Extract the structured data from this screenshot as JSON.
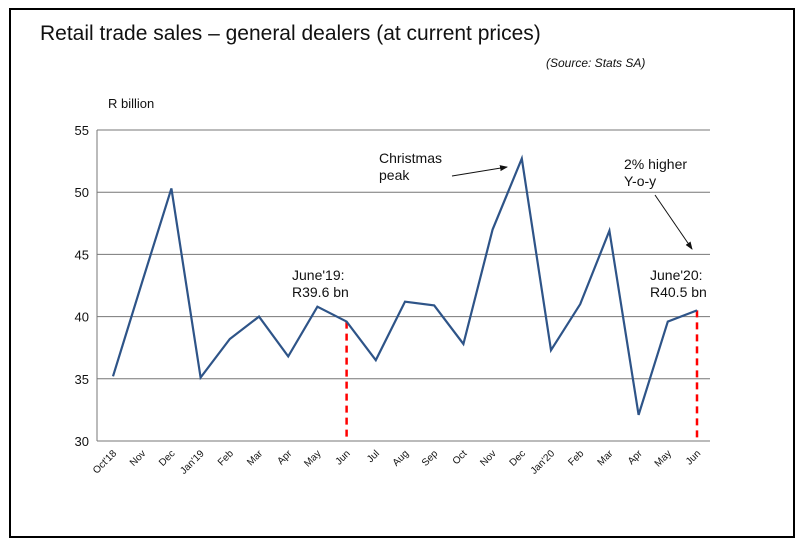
{
  "chart_data": {
    "type": "line",
    "title": "Retail trade sales – general dealers (at current prices)",
    "source": "(Source: Stats SA)",
    "ylabel": "R billion",
    "xlabel": "",
    "ylim": [
      30,
      55
    ],
    "yticks": [
      30,
      35,
      40,
      45,
      50,
      55
    ],
    "grid": true,
    "categories": [
      "Oct'18",
      "Nov",
      "Dec",
      "Jan'19",
      "Feb",
      "Mar",
      "Apr",
      "May",
      "Jun",
      "Jul",
      "Aug",
      "Sep",
      "Oct",
      "Nov",
      "Dec",
      "Jan'20",
      "Feb",
      "Mar",
      "Apr",
      "May",
      "Jun"
    ],
    "values": [
      35.2,
      42.8,
      50.3,
      35.1,
      38.2,
      40.0,
      36.8,
      40.8,
      39.6,
      36.5,
      41.2,
      40.9,
      37.8,
      47.0,
      52.7,
      37.3,
      41.0,
      46.9,
      32.1,
      39.6,
      40.5
    ],
    "line_color": "#2e5488",
    "marker_color": "#ff0000",
    "annotations": {
      "christmas": "Christmas\npeak",
      "yoy": "2% higher\nY-o-y",
      "june19": "June'19:\nR39.6 bn",
      "june20": "June'20:\nR40.5 bn"
    }
  }
}
